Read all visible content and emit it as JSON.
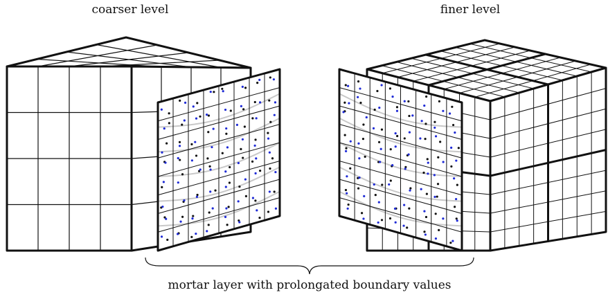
{
  "labels": {
    "left_title": "coarser level",
    "right_title": "finer level",
    "caption": "mortar layer with prolongated boundary values"
  },
  "colors": {
    "stroke": "#111111",
    "faint": "#c8c8c8",
    "dot_black": "#111111",
    "dot_blue": "#1f2bd6"
  },
  "coarse_cube": {
    "cells_per_edge": 4
  },
  "fine_cube": {
    "blocks_per_edge": 2,
    "cells_per_block": 4
  },
  "mortar": {
    "cells_per_edge": 8,
    "points_per_cell": 2
  }
}
